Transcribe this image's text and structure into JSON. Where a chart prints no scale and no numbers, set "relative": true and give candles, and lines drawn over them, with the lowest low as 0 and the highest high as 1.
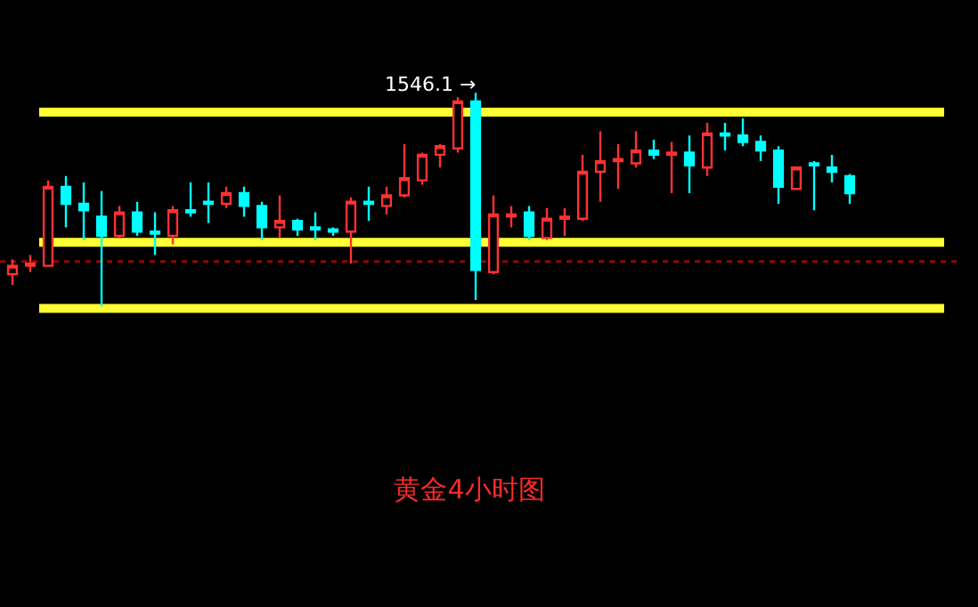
{
  "chart_data": {
    "type": "candlestick",
    "title": "黄金4小时图",
    "relative": true,
    "categories": [
      null,
      null,
      null,
      null,
      null,
      null,
      null,
      null,
      null,
      null,
      null,
      null,
      null,
      null,
      null,
      null,
      null,
      null,
      null,
      null,
      null,
      null,
      null,
      null,
      null,
      null,
      null,
      null,
      null,
      null,
      null,
      null,
      null,
      null,
      null,
      null,
      null,
      null,
      null,
      null,
      null,
      null,
      null,
      null,
      null,
      null,
      null,
      null
    ],
    "ohlc": [
      [
        0.15,
        0.22,
        0.1,
        0.19
      ],
      [
        0.19,
        0.24,
        0.16,
        0.2
      ],
      [
        0.19,
        0.59,
        0.19,
        0.56
      ],
      [
        0.56,
        0.61,
        0.37,
        0.48
      ],
      [
        0.48,
        0.58,
        0.31,
        0.45
      ],
      [
        0.42,
        0.54,
        0,
        0.33
      ],
      [
        0.33,
        0.47,
        0.32,
        0.44
      ],
      [
        0.44,
        0.49,
        0.33,
        0.35
      ],
      [
        0.35,
        0.44,
        0.24,
        0.34
      ],
      [
        0.33,
        0.47,
        0.29,
        0.45
      ],
      [
        0.45,
        0.58,
        0.42,
        0.44
      ],
      [
        0.49,
        0.58,
        0.39,
        0.48
      ],
      [
        0.48,
        0.56,
        0.46,
        0.53
      ],
      [
        0.53,
        0.56,
        0.42,
        0.47
      ],
      [
        0.47,
        0.49,
        0.31,
        0.37
      ],
      [
        0.37,
        0.52,
        0.32,
        0.4
      ],
      [
        0.4,
        0.41,
        0.33,
        0.36
      ],
      [
        0.37,
        0.44,
        0.31,
        0.36
      ],
      [
        0.36,
        0.37,
        0.33,
        0.35
      ],
      [
        0.35,
        0.51,
        0.2,
        0.49
      ],
      [
        0.49,
        0.56,
        0.4,
        0.48
      ],
      [
        0.47,
        0.56,
        0.43,
        0.52
      ],
      [
        0.52,
        0.76,
        0.51,
        0.6
      ],
      [
        0.59,
        0.72,
        0.57,
        0.71
      ],
      [
        0.71,
        0.76,
        0.65,
        0.75
      ],
      [
        0.74,
        0.98,
        0.72,
        0.96
      ],
      [
        0.96,
        1,
        0.03,
        0.17
      ],
      [
        0.16,
        0.52,
        0.15,
        0.43
      ],
      [
        0.42,
        0.47,
        0.37,
        0.43
      ],
      [
        0.44,
        0.47,
        0.31,
        0.33
      ],
      [
        0.32,
        0.46,
        0.31,
        0.41
      ],
      [
        0.41,
        0.46,
        0.33,
        0.42
      ],
      [
        0.41,
        0.71,
        0.4,
        0.63
      ],
      [
        0.63,
        0.82,
        0.49,
        0.68
      ],
      [
        0.68,
        0.76,
        0.55,
        0.69
      ],
      [
        0.67,
        0.82,
        0.65,
        0.73
      ],
      [
        0.73,
        0.78,
        0.69,
        0.71
      ],
      [
        0.71,
        0.77,
        0.53,
        0.72
      ],
      [
        0.72,
        0.8,
        0.53,
        0.66
      ],
      [
        0.65,
        0.86,
        0.61,
        0.81
      ],
      [
        0.81,
        0.86,
        0.73,
        0.8
      ],
      [
        0.8,
        0.88,
        0.75,
        0.77
      ],
      [
        0.77,
        0.8,
        0.68,
        0.73
      ],
      [
        0.73,
        0.75,
        0.48,
        0.56
      ],
      [
        0.55,
        0.65,
        0.55,
        0.65
      ],
      [
        0.67,
        0.68,
        0.45,
        0.66
      ],
      [
        0.65,
        0.71,
        0.58,
        0.63
      ],
      [
        0.61,
        0.62,
        0.48,
        0.53
      ]
    ],
    "colors": [
      "#ff3232",
      "#ff3232",
      "#ff3232",
      "#00ffff",
      "#00ffff",
      "#00ffff",
      "#ff3232",
      "#00ffff",
      "#00ffff",
      "#ff3232",
      "#00ffff",
      "#00ffff",
      "#ff3232",
      "#00ffff",
      "#00ffff",
      "#ff3232",
      "#00ffff",
      "#00ffff",
      "#00ffff",
      "#ff3232",
      "#00ffff",
      "#ff3232",
      "#ff3232",
      "#ff3232",
      "#ff3232",
      "#ff3232",
      "#00ffff",
      "#ff3232",
      "#ff3232",
      "#00ffff",
      "#ff3232",
      "#ff3232",
      "#ff3232",
      "#ff3232",
      "#ff3232",
      "#ff3232",
      "#00ffff",
      "#ff3232",
      "#00ffff",
      "#ff3232",
      "#00ffff",
      "#00ffff",
      "#00ffff",
      "#00ffff",
      "#ff3232",
      "#00ffff",
      "#00ffff",
      "#00ffff"
    ],
    "ref_lines": [
      {
        "axis": "y",
        "value": 0.91,
        "color": "#ffff33",
        "line_style": "solid"
      },
      {
        "axis": "y",
        "value": 0.3,
        "color": "#ffff33",
        "line_style": "solid"
      },
      {
        "axis": "y",
        "value": -0.01,
        "color": "#ffff33",
        "line_style": "solid"
      },
      {
        "axis": "y",
        "value": 0.21,
        "color": "#b00000",
        "line_style": "dotted"
      }
    ],
    "annotations": [
      "1546.1 →"
    ],
    "legend": false
  }
}
